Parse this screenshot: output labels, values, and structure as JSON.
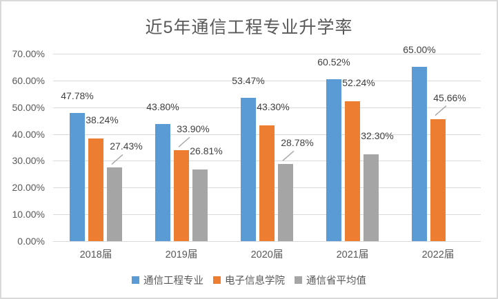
{
  "title": "近5年通信工程专业升学率",
  "chart_data": {
    "type": "bar",
    "title": "近5年通信工程专业升学率",
    "categories": [
      "2018届",
      "2019届",
      "2020届",
      "2021届",
      "2022届"
    ],
    "series": [
      {
        "name": "通信工程专业",
        "color": "#5B9BD5",
        "values": [
          47.78,
          43.8,
          53.47,
          60.52,
          65.0
        ],
        "labels": [
          "47.78%",
          "43.80%",
          "53.47%",
          "60.52%",
          "65.00%"
        ],
        "label_placement": [
          "above",
          "above",
          "above",
          "above",
          "above"
        ]
      },
      {
        "name": "电子信息学院",
        "color": "#ED7D31",
        "values": [
          38.24,
          33.9,
          43.3,
          52.24,
          45.66
        ],
        "labels": [
          "38.24%",
          "33.90%",
          "43.30%",
          "52.24%",
          "45.66%"
        ],
        "label_placement": [
          "right",
          "leader",
          "right",
          "right",
          "leader"
        ]
      },
      {
        "name": "通信省平均值",
        "color": "#A5A5A5",
        "values": [
          27.43,
          26.81,
          28.78,
          32.3,
          null
        ],
        "labels": [
          "27.43%",
          "26.81%",
          "28.78%",
          "32.30%",
          null
        ],
        "label_placement": [
          "leader",
          "right",
          "leader",
          "right",
          null
        ]
      }
    ],
    "y_axis": {
      "min": 0,
      "max": 70,
      "step": 10,
      "tick_labels": [
        "0.00%",
        "10.00%",
        "20.00%",
        "30.00%",
        "40.00%",
        "50.00%",
        "60.00%",
        "70.00%"
      ]
    },
    "grid": true,
    "legend_position": "bottom",
    "colors": {
      "gridline": "#D9D9D9",
      "frame_border": "#D9D9D9",
      "axis_text": "#595959",
      "title_text": "#595959",
      "data_label_text": "#3F3F3F",
      "leader_line": "#A6A6A6"
    }
  }
}
